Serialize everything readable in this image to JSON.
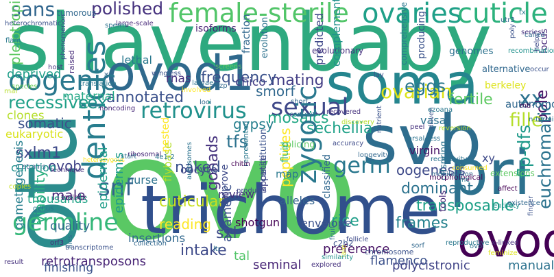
{
  "words": [
    {
      "text": "ovo",
      "color": "#5ac864"
    },
    {
      "text": "shavenbaby",
      "color": "#2ea97f"
    },
    {
      "text": "otu",
      "color": "#2c8c8d"
    },
    {
      "text": "trichome",
      "color": "#31508c"
    },
    {
      "text": "soma",
      "color": "#25858e"
    },
    {
      "text": "svb",
      "color": "#2e6d8e"
    },
    {
      "text": "ovod1",
      "color": "#2f698d"
    },
    {
      "text": "ovod",
      "color": "#440154"
    },
    {
      "text": "pri",
      "color": "#2d718e"
    },
    {
      "text": "female-sterile",
      "color": "#52c569"
    },
    {
      "text": "ovaries",
      "color": "#1fa088"
    },
    {
      "text": "cuticle",
      "color": "#2db27d"
    },
    {
      "text": "sans",
      "color": "#31668e"
    },
    {
      "text": "oogenic",
      "color": "#2a788e"
    },
    {
      "text": "denticles",
      "color": "#287d8e"
    },
    {
      "text": "sexual",
      "color": "#3f4889"
    },
    {
      "text": "ovarian",
      "color": "#dde318"
    },
    {
      "text": "xx",
      "color": "#2c728e"
    },
    {
      "text": "germline",
      "color": "#35b779"
    },
    {
      "text": "germ",
      "color": "#2a788e"
    },
    {
      "text": "snf",
      "color": "#33638d"
    },
    {
      "text": "retrovirus",
      "color": "#21918c"
    },
    {
      "text": "polished",
      "color": "#46327e"
    },
    {
      "text": "annotated",
      "color": "#3b518b"
    },
    {
      "text": "recessive",
      "color": "#1fa088"
    },
    {
      "text": "eggs",
      "color": "#2a788e"
    },
    {
      "text": "mating",
      "color": "#433e85"
    },
    {
      "text": "frequency",
      "color": "#3b528b"
    },
    {
      "text": "sex",
      "color": "#21918c"
    },
    {
      "text": "fertile",
      "color": "#5ec962"
    },
    {
      "text": "pole",
      "color": "#471365"
    },
    {
      "text": "fille",
      "color": "#b5de2b"
    },
    {
      "text": "euchromatic",
      "color": "#2c738e"
    },
    {
      "text": "sechellia",
      "color": "#1fa188"
    },
    {
      "text": "mosaics",
      "color": "#22a785"
    },
    {
      "text": "smorf",
      "color": "#31688e"
    },
    {
      "text": "somatic",
      "color": "#3b528b"
    },
    {
      "text": "gypsy",
      "color": "#277f8e"
    },
    {
      "text": "tfs",
      "color": "#2c728e"
    },
    {
      "text": "sxlm1",
      "color": "#3e4a89"
    },
    {
      "text": "epidermal",
      "color": "#1f9e89"
    },
    {
      "text": "epidermis",
      "color": "#1e9b8a"
    },
    {
      "text": "zygotic",
      "color": "#2a788e"
    },
    {
      "text": "flp-dfs",
      "color": "#1f9a8a"
    },
    {
      "text": "ovob",
      "color": "#414487"
    },
    {
      "text": "gametogenesis",
      "color": "#277f8e"
    },
    {
      "text": "viability",
      "color": "#29af7f"
    },
    {
      "text": "male",
      "color": "#482979"
    },
    {
      "text": "oogenesis",
      "color": "#3e4a89"
    },
    {
      "text": "dominant",
      "color": "#2c728e"
    },
    {
      "text": "naked",
      "color": "#3b528b"
    },
    {
      "text": "gonads",
      "color": "#46337e"
    },
    {
      "text": "flybase",
      "color": "#b5de2b"
    },
    {
      "text": "cuticular",
      "color": "#c8e020"
    },
    {
      "text": "peptides",
      "color": "#fde725"
    },
    {
      "text": "rice",
      "color": "#1f9e89"
    },
    {
      "text": "transposable",
      "color": "#1fa088"
    },
    {
      "text": "frames",
      "color": "#26828e"
    },
    {
      "text": "reading",
      "color": "#fde725"
    },
    {
      "text": "sxl",
      "color": "#3e4a89"
    },
    {
      "text": "intake",
      "color": "#3e4a89"
    },
    {
      "text": "tal",
      "color": "#52c569"
    },
    {
      "text": "preference",
      "color": "#471365"
    },
    {
      "text": "agametic",
      "color": "#3b528b"
    },
    {
      "text": "seminal",
      "color": "#482677"
    },
    {
      "text": "flamenco",
      "color": "#3b518b"
    },
    {
      "text": "retrotransposons",
      "color": "#482475"
    },
    {
      "text": "polycistronic",
      "color": "#414487"
    },
    {
      "text": "finishing",
      "color": "#3b528b"
    },
    {
      "text": "manually",
      "color": "#2c728e"
    },
    {
      "text": "thousands",
      "color": "#20a386"
    },
    {
      "text": "quality",
      "color": "#31688e"
    },
    {
      "text": "shotgun",
      "color": "#440154"
    },
    {
      "text": "alleles",
      "color": "#33638d"
    },
    {
      "text": "oocyte",
      "color": "#3f4788"
    },
    {
      "text": "nurse",
      "color": "#2c728e"
    },
    {
      "text": "rnas",
      "color": "#46327e"
    },
    {
      "text": "chico",
      "color": "#433e85"
    },
    {
      "text": "lethal",
      "color": "#2a788e"
    },
    {
      "text": "deprived",
      "color": "#1f9e89"
    },
    {
      "text": "maternal",
      "color": "#22a785"
    },
    {
      "text": "clones",
      "color": "#b5de2b"
    },
    {
      "text": "eukaryotic",
      "color": "#d8e219"
    },
    {
      "text": "insertions",
      "color": "#31688e"
    },
    {
      "text": "envelope",
      "color": "#3b528b"
    },
    {
      "text": "vasa",
      "color": "#2c728e"
    },
    {
      "text": "virgin",
      "color": "#471365"
    },
    {
      "text": "xy",
      "color": "#3e4a89"
    },
    {
      "text": "autonomous",
      "color": "#31688e"
    },
    {
      "text": "berkeley",
      "color": "#dde318"
    },
    {
      "text": "locus",
      "color": "#482979"
    },
    {
      "text": "producing",
      "color": "#3b528b"
    },
    {
      "text": "genomes",
      "color": "#2c728e"
    },
    {
      "text": "alternative",
      "color": "#31688e"
    },
    {
      "text": "comprehensive",
      "color": "#2a788e"
    },
    {
      "text": "predicted",
      "color": "#3f4889"
    },
    {
      "text": "fraction",
      "color": "#31688e"
    },
    {
      "text": "evolutionary",
      "color": "#46327e"
    },
    {
      "text": "complementation",
      "color": "#21918c"
    },
    {
      "text": "evolution",
      "color": "#2c728e"
    },
    {
      "text": "isoforms",
      "color": "#482475"
    },
    {
      "text": "pleiotropic",
      "color": "#5ec962"
    },
    {
      "text": "heterochromatic",
      "color": "#3b528b"
    },
    {
      "text": "tumorous",
      "color": "#31688e"
    },
    {
      "text": "large-scale",
      "color": "#482979"
    },
    {
      "text": "map",
      "color": "#2a788e"
    },
    {
      "text": "splicing",
      "color": "#5ec962"
    },
    {
      "text": "nested",
      "color": "#fde725"
    },
    {
      "text": "autosomes",
      "color": "#2c728e"
    },
    {
      "text": "products",
      "color": "#3e4a89"
    },
    {
      "text": "appetite",
      "color": "#414487"
    },
    {
      "text": "review",
      "color": "#46327e"
    },
    {
      "text": "represented",
      "color": "#2a788e"
    },
    {
      "text": "classified",
      "color": "#31688e"
    },
    {
      "text": "fluid",
      "color": "#35b779"
    },
    {
      "text": "improve",
      "color": "#3e4a89"
    },
    {
      "text": "constitution",
      "color": "#3b528b"
    },
    {
      "text": "offspring",
      "color": "#2c728e"
    },
    {
      "text": "morphological",
      "color": "#440154"
    },
    {
      "text": "tools",
      "color": "#482979"
    },
    {
      "text": "extensions",
      "color": "#5ec962"
    },
    {
      "text": "raised",
      "color": "#472c7a"
    },
    {
      "text": "species",
      "color": "#6ccd5a"
    },
    {
      "text": "translation",
      "color": "#2a788e"
    },
    {
      "text": "strains",
      "color": "#3b528b"
    },
    {
      "text": "technique",
      "color": "#46327e"
    },
    {
      "text": "heterozygous",
      "color": "#fde725"
    },
    {
      "text": "ribosomal",
      "color": "#482979"
    },
    {
      "text": "chitin",
      "color": "#440154"
    },
    {
      "text": "start",
      "color": "#2c728e"
    },
    {
      "text": "4e1-2",
      "color": "#2a788e"
    },
    {
      "text": "curation",
      "color": "#21918c"
    },
    {
      "text": "copies",
      "color": "#c8e020"
    },
    {
      "text": "genus",
      "color": "#2a788e"
    },
    {
      "text": "toolbox",
      "color": "#481467"
    },
    {
      "text": "orf3",
      "color": "#472c7a"
    },
    {
      "text": "result",
      "color": "#46327e"
    },
    {
      "text": "flies",
      "color": "#2c728e"
    },
    {
      "text": "transcriptome",
      "color": "#3b528b"
    },
    {
      "text": "collection",
      "color": "#31688e"
    },
    {
      "text": "ltr",
      "color": "#2c728e"
    },
    {
      "text": "laid",
      "color": "#dde318"
    },
    {
      "text": "c2h2",
      "color": "#3b528b"
    },
    {
      "text": "similarity",
      "color": "#21918c"
    },
    {
      "text": "follicle",
      "color": "#3e4a89"
    },
    {
      "text": "fruit",
      "color": "#2c728e"
    },
    {
      "text": "explored",
      "color": "#46327e"
    },
    {
      "text": "chromosome",
      "color": "#3b528b"
    },
    {
      "text": "sorf",
      "color": "#31688e"
    },
    {
      "text": "reproductive",
      "color": "#2a788e"
    },
    {
      "text": "feminize",
      "color": "#dde318"
    },
    {
      "text": "ovol",
      "color": "#2c728e"
    },
    {
      "text": "x-linked",
      "color": "#46327e"
    },
    {
      "text": "finger",
      "color": "#3b528b"
    },
    {
      "text": "entirety",
      "color": "#21918c"
    },
    {
      "text": "existence",
      "color": "#31688e"
    },
    {
      "text": "affect",
      "color": "#440154"
    },
    {
      "text": "zinc",
      "color": "#2a788e"
    },
    {
      "text": "consumed",
      "color": "#fde725"
    },
    {
      "text": "mobilization",
      "color": "#31688e"
    },
    {
      "text": "receptivity",
      "color": "#2c728e"
    },
    {
      "text": "driven",
      "color": "#3b528b"
    },
    {
      "text": "peel",
      "color": "#46327e"
    },
    {
      "text": "tarsal-less",
      "color": "#2c728e"
    },
    {
      "text": "longevity",
      "color": "#31688e"
    },
    {
      "text": "reversion",
      "color": "#b5de2b"
    },
    {
      "text": "ezoana",
      "color": "#2a788e"
    },
    {
      "text": "nutrient",
      "color": "#3b528b"
    },
    {
      "text": "recovered",
      "color": "#46327e"
    },
    {
      "text": "short",
      "color": "#31688e"
    },
    {
      "text": "context",
      "color": "#2c728e"
    },
    {
      "text": "accuracy",
      "color": "#3e4a89"
    },
    {
      "text": "discovery",
      "color": "#b5de2b"
    },
    {
      "text": "noncoding",
      "color": "#482979"
    },
    {
      "text": "n-termini",
      "color": "#2c728e"
    },
    {
      "text": "mb",
      "color": "#440154"
    },
    {
      "text": "lay",
      "color": "#3b528b"
    },
    {
      "text": "zp",
      "color": "#31688e"
    },
    {
      "text": "screens",
      "color": "#5ec962"
    },
    {
      "text": "wingless",
      "color": "#3b528b"
    },
    {
      "text": "larvae",
      "color": "#2c728e"
    },
    {
      "text": "loci",
      "color": "#31688e"
    },
    {
      "text": "host",
      "color": "#46327e"
    },
    {
      "text": "flam",
      "color": "#2a788e"
    },
    {
      "text": "phenomenon",
      "color": "#3b528b"
    },
    {
      "text": "rnai",
      "color": "#b5de2b"
    },
    {
      "text": "tx",
      "color": "#31688e"
    },
    {
      "text": "involved",
      "color": "#fde725"
    },
    {
      "text": "sperm",
      "color": "#2c728e"
    },
    {
      "text": "tx",
      "color": "#2a788e"
    },
    {
      "text": "utr3",
      "color": "#31688e"
    },
    {
      "text": "poly",
      "color": "#3b528b"
    },
    {
      "text": "series",
      "color": "#46327e"
    },
    {
      "text": "recombination",
      "color": "#21918c"
    },
    {
      "text": "helps",
      "color": "#3e4a89"
    },
    {
      "text": "called",
      "color": "#31688e"
    },
    {
      "text": "occur",
      "color": "#3b528b"
    }
  ]
}
